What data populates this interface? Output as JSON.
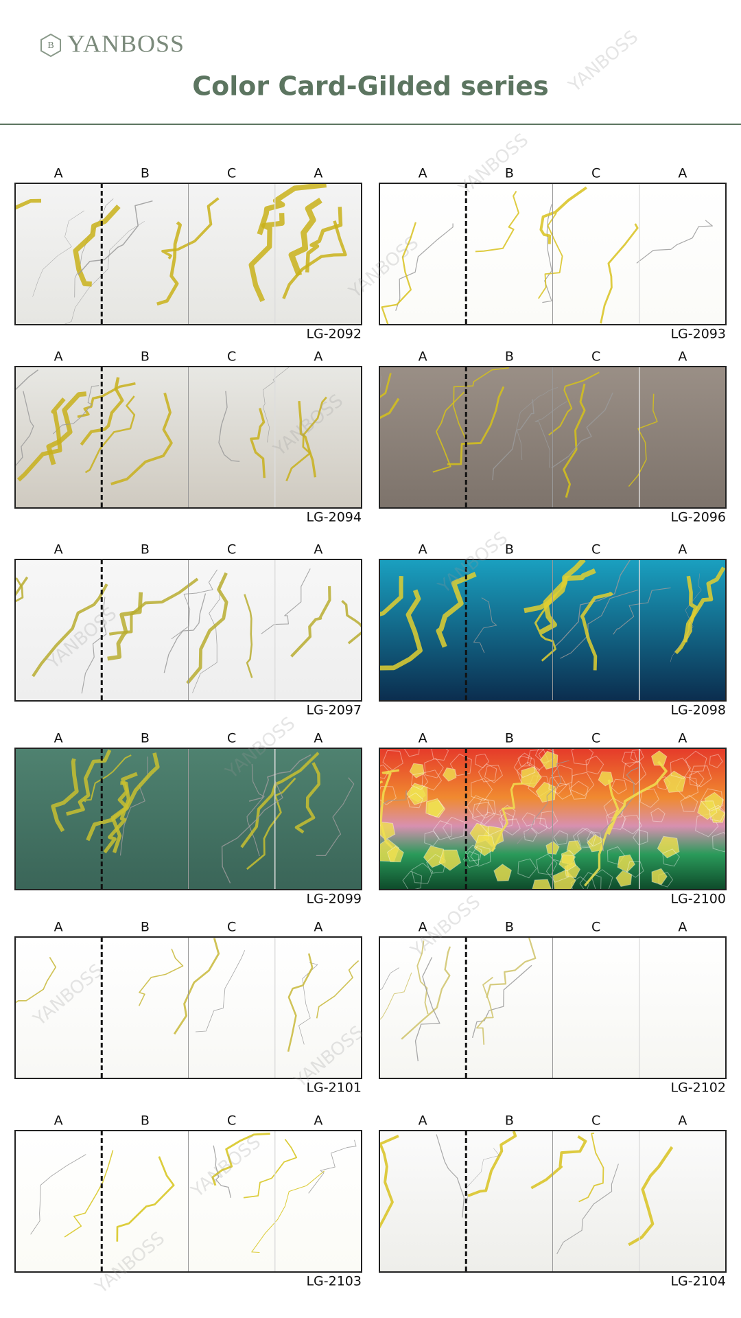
{
  "header": {
    "logo": "YANBOSS",
    "title": "Color Card-Gilded series"
  },
  "watermark": "YANBOSS",
  "panel_labels": [
    "A",
    "B",
    "C",
    "A"
  ],
  "cards": [
    {
      "code": "LG-2092"
    },
    {
      "code": "LG-2093"
    },
    {
      "code": "LG-2094"
    },
    {
      "code": "LG-2096"
    },
    {
      "code": "LG-2097"
    },
    {
      "code": "LG-2098"
    },
    {
      "code": "LG-2099"
    },
    {
      "code": "LG-2100"
    },
    {
      "code": "LG-2101"
    },
    {
      "code": "LG-2102"
    },
    {
      "code": "LG-2103"
    },
    {
      "code": "LG-2104"
    }
  ]
}
